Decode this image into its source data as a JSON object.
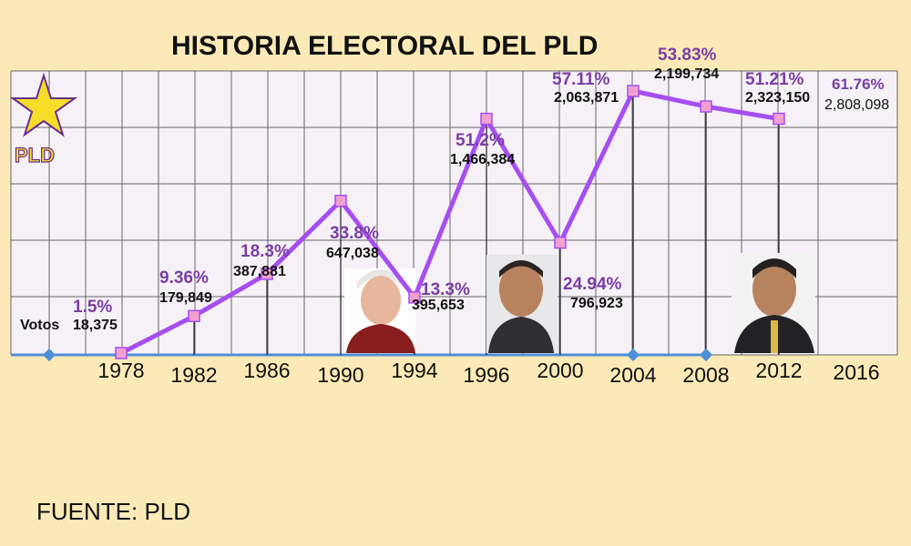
{
  "chart_data": {
    "type": "line",
    "title": "HISTORIA ELECTORAL DEL PLD",
    "votes_label": "Votos",
    "categories": [
      "1978",
      "1982",
      "1986",
      "1990",
      "1994",
      "1996",
      "2000",
      "2004",
      "2008",
      "2012"
    ],
    "extra_category": "2016",
    "series": [
      {
        "values": [
          1.5,
          9.36,
          18.3,
          33.8,
          13.3,
          51.2,
          24.94,
          57.11,
          53.83,
          51.21
        ],
        "percent_labels": [
          "1.5%",
          "9.36%",
          "18.3%",
          "33.8%",
          "13.3%",
          "51.2%",
          "24.94%",
          "57.11%",
          "53.83%",
          "51.21%"
        ],
        "vote_labels": [
          "18,375",
          "179,849",
          "387,881",
          "647,038",
          "395,653",
          "1,466,384",
          "796,923",
          "2,063,871",
          "2,199,734",
          "2,323,150"
        ],
        "color": "#a64ef0"
      }
    ],
    "extra_point": {
      "percent_label": "61.76%",
      "vote_label": "2,808,098"
    },
    "ylim": [
      0,
      62
    ],
    "grid": true
  },
  "logo": {
    "text": "PLD",
    "star_color": "#f5dd2a",
    "outline_color": "#6b2f8c"
  },
  "source": "FUENTE: PLD",
  "colors": {
    "background": "#fbeab7",
    "plot_background": "#f5f1f7",
    "grid": "#555555",
    "line": "#a64ef0",
    "marker": "#f0a0d0",
    "baseline": "#4f8fd8"
  }
}
